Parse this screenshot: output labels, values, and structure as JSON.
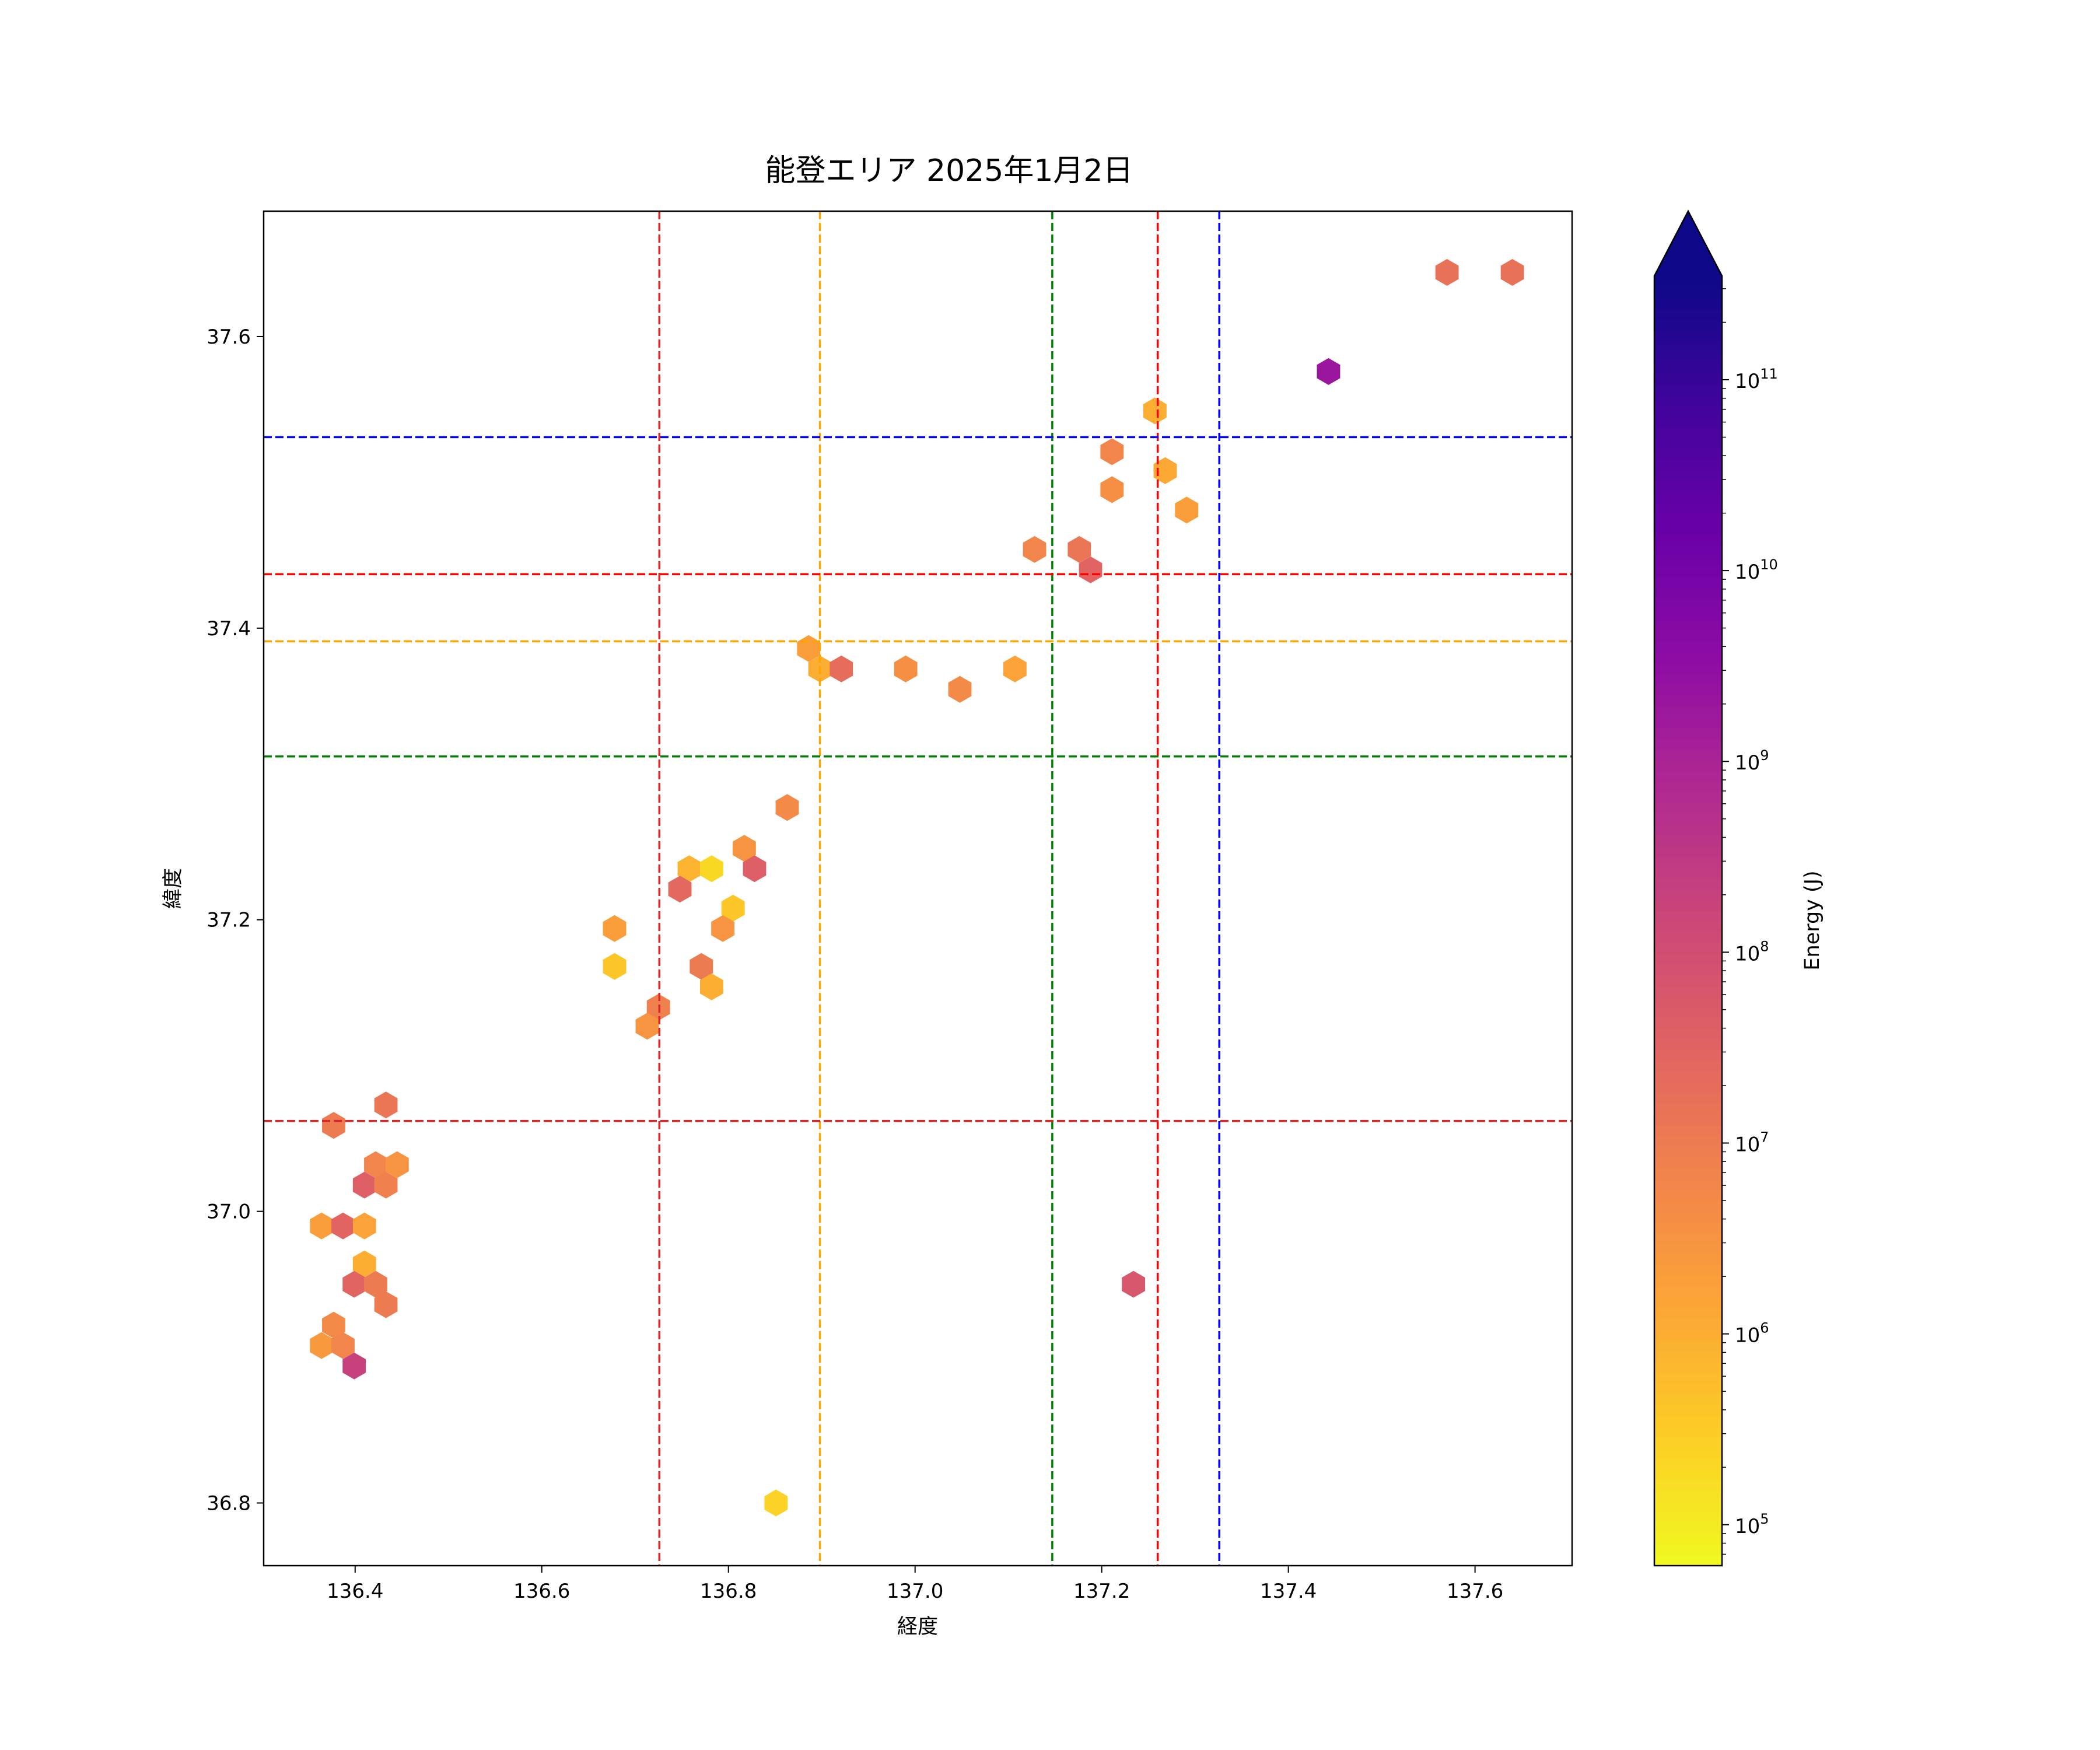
{
  "chart_data": {
    "type": "hexbin",
    "title": "能登エリア 2025年1月2日",
    "xlabel": "経度",
    "ylabel": "緯度",
    "xlim": [
      136.302,
      137.704
    ],
    "ylim": [
      36.757,
      37.686
    ],
    "xticks": [
      136.4,
      136.6,
      136.8,
      137.0,
      137.2,
      137.4,
      137.6
    ],
    "yticks": [
      36.8,
      37.0,
      37.2,
      37.4,
      37.6
    ],
    "grid": false,
    "colorbar": {
      "label": "Energy (J)",
      "colormap": "plasma_r",
      "scale": "log",
      "range": [
        61000,
        350000000000.0
      ],
      "ticks": [
        5,
        6,
        7,
        8,
        9,
        10,
        11
      ],
      "extend": "max"
    },
    "vlines": [
      {
        "x": 136.726,
        "color": "#d62728"
      },
      {
        "x": 136.898,
        "color": "#ffa500"
      },
      {
        "x": 137.147,
        "color": "#008000"
      },
      {
        "x": 137.26,
        "color": "#ff0000"
      },
      {
        "x": 137.326,
        "color": "#0000ff"
      }
    ],
    "hlines": [
      {
        "y": 37.531,
        "color": "#0000ff"
      },
      {
        "y": 37.437,
        "color": "#ff0000"
      },
      {
        "y": 37.391,
        "color": "#ffa500"
      },
      {
        "y": 37.312,
        "color": "#008000"
      },
      {
        "y": 37.062,
        "color": "#d62728"
      }
    ],
    "points_lon_lat_log10energy": [
      [
        137.57,
        37.644,
        7.2
      ],
      [
        137.64,
        37.644,
        7.2
      ],
      [
        137.443,
        37.576,
        9.3
      ],
      [
        137.257,
        37.549,
        6.0
      ],
      [
        137.211,
        37.521,
        6.8
      ],
      [
        137.268,
        37.508,
        6.1
      ],
      [
        137.211,
        37.495,
        6.6
      ],
      [
        137.291,
        37.481,
        6.3
      ],
      [
        137.128,
        37.454,
        6.8
      ],
      [
        137.176,
        37.454,
        7.1
      ],
      [
        137.188,
        37.44,
        7.5
      ],
      [
        136.886,
        37.386,
        6.3
      ],
      [
        136.898,
        37.372,
        6.0
      ],
      [
        136.921,
        37.372,
        7.3
      ],
      [
        136.99,
        37.372,
        6.6
      ],
      [
        137.048,
        37.358,
        6.7
      ],
      [
        137.107,
        37.372,
        6.2
      ],
      [
        136.863,
        37.277,
        6.7
      ],
      [
        136.817,
        37.249,
        6.5
      ],
      [
        136.828,
        37.235,
        7.6
      ],
      [
        136.758,
        37.235,
        5.9
      ],
      [
        136.782,
        37.235,
        5.3
      ],
      [
        136.748,
        37.221,
        7.4
      ],
      [
        136.805,
        37.208,
        5.6
      ],
      [
        136.794,
        37.194,
        6.5
      ],
      [
        136.678,
        37.194,
        6.3
      ],
      [
        136.678,
        37.168,
        5.6
      ],
      [
        136.771,
        37.168,
        7.0
      ],
      [
        136.782,
        37.154,
        6.0
      ],
      [
        136.725,
        37.14,
        6.9
      ],
      [
        136.713,
        37.127,
        6.5
      ],
      [
        136.433,
        37.073,
        7.1
      ],
      [
        136.377,
        37.059,
        7.0
      ],
      [
        136.422,
        37.032,
        6.8
      ],
      [
        136.445,
        37.032,
        6.5
      ],
      [
        136.41,
        37.018,
        7.6
      ],
      [
        136.433,
        37.018,
        6.9
      ],
      [
        136.364,
        36.99,
        6.3
      ],
      [
        136.387,
        36.99,
        7.5
      ],
      [
        136.41,
        36.99,
        6.2
      ],
      [
        136.41,
        36.964,
        6.0
      ],
      [
        136.399,
        36.95,
        7.5
      ],
      [
        136.422,
        36.95,
        7.0
      ],
      [
        136.433,
        36.936,
        7.0
      ],
      [
        136.377,
        36.922,
        6.7
      ],
      [
        136.364,
        36.908,
        6.4
      ],
      [
        136.387,
        36.908,
        6.8
      ],
      [
        136.399,
        36.894,
        8.3
      ],
      [
        137.234,
        36.95,
        7.8
      ],
      [
        136.851,
        36.8,
        5.4
      ]
    ]
  }
}
